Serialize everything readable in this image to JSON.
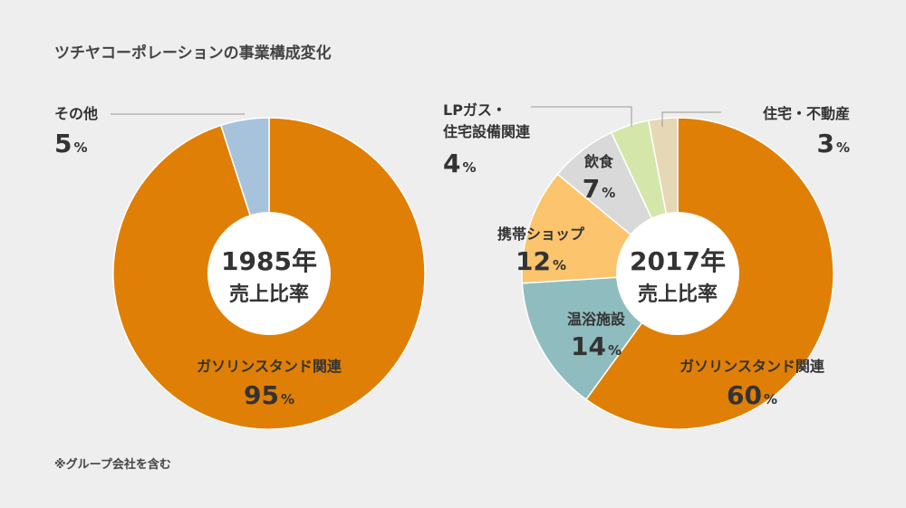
{
  "title": "ツチヤコーポレーションの事業構成変化",
  "footnote": "※グループ会社を含む",
  "colors": {
    "background": "#eeeeee",
    "text": "#333333"
  },
  "chart_data": [
    {
      "type": "pie",
      "center_label": [
        "1985年",
        "売上比率"
      ],
      "slices": [
        {
          "label": "ガソリンスタンド関連",
          "value": 95,
          "color": "#e07f05"
        },
        {
          "label": "その他",
          "value": 5,
          "color": "#a7c3db"
        }
      ],
      "unit": "%"
    },
    {
      "type": "pie",
      "center_label": [
        "2017年",
        "売上比率"
      ],
      "slices": [
        {
          "label": "ガソリンスタンド関連",
          "value": 60,
          "color": "#e07f05"
        },
        {
          "label": "温浴施設",
          "value": 14,
          "color": "#8fbcbf"
        },
        {
          "label": "携帯ショップ",
          "value": 12,
          "color": "#fbc46d"
        },
        {
          "label": "飲食",
          "value": 7,
          "color": "#d9d9d9"
        },
        {
          "label": "LPガス・住宅設備関連",
          "value": 4,
          "color": "#d5e6ab"
        },
        {
          "label": "住宅・不動産",
          "value": 3,
          "color": "#e6d7b5"
        }
      ],
      "unit": "%"
    }
  ]
}
